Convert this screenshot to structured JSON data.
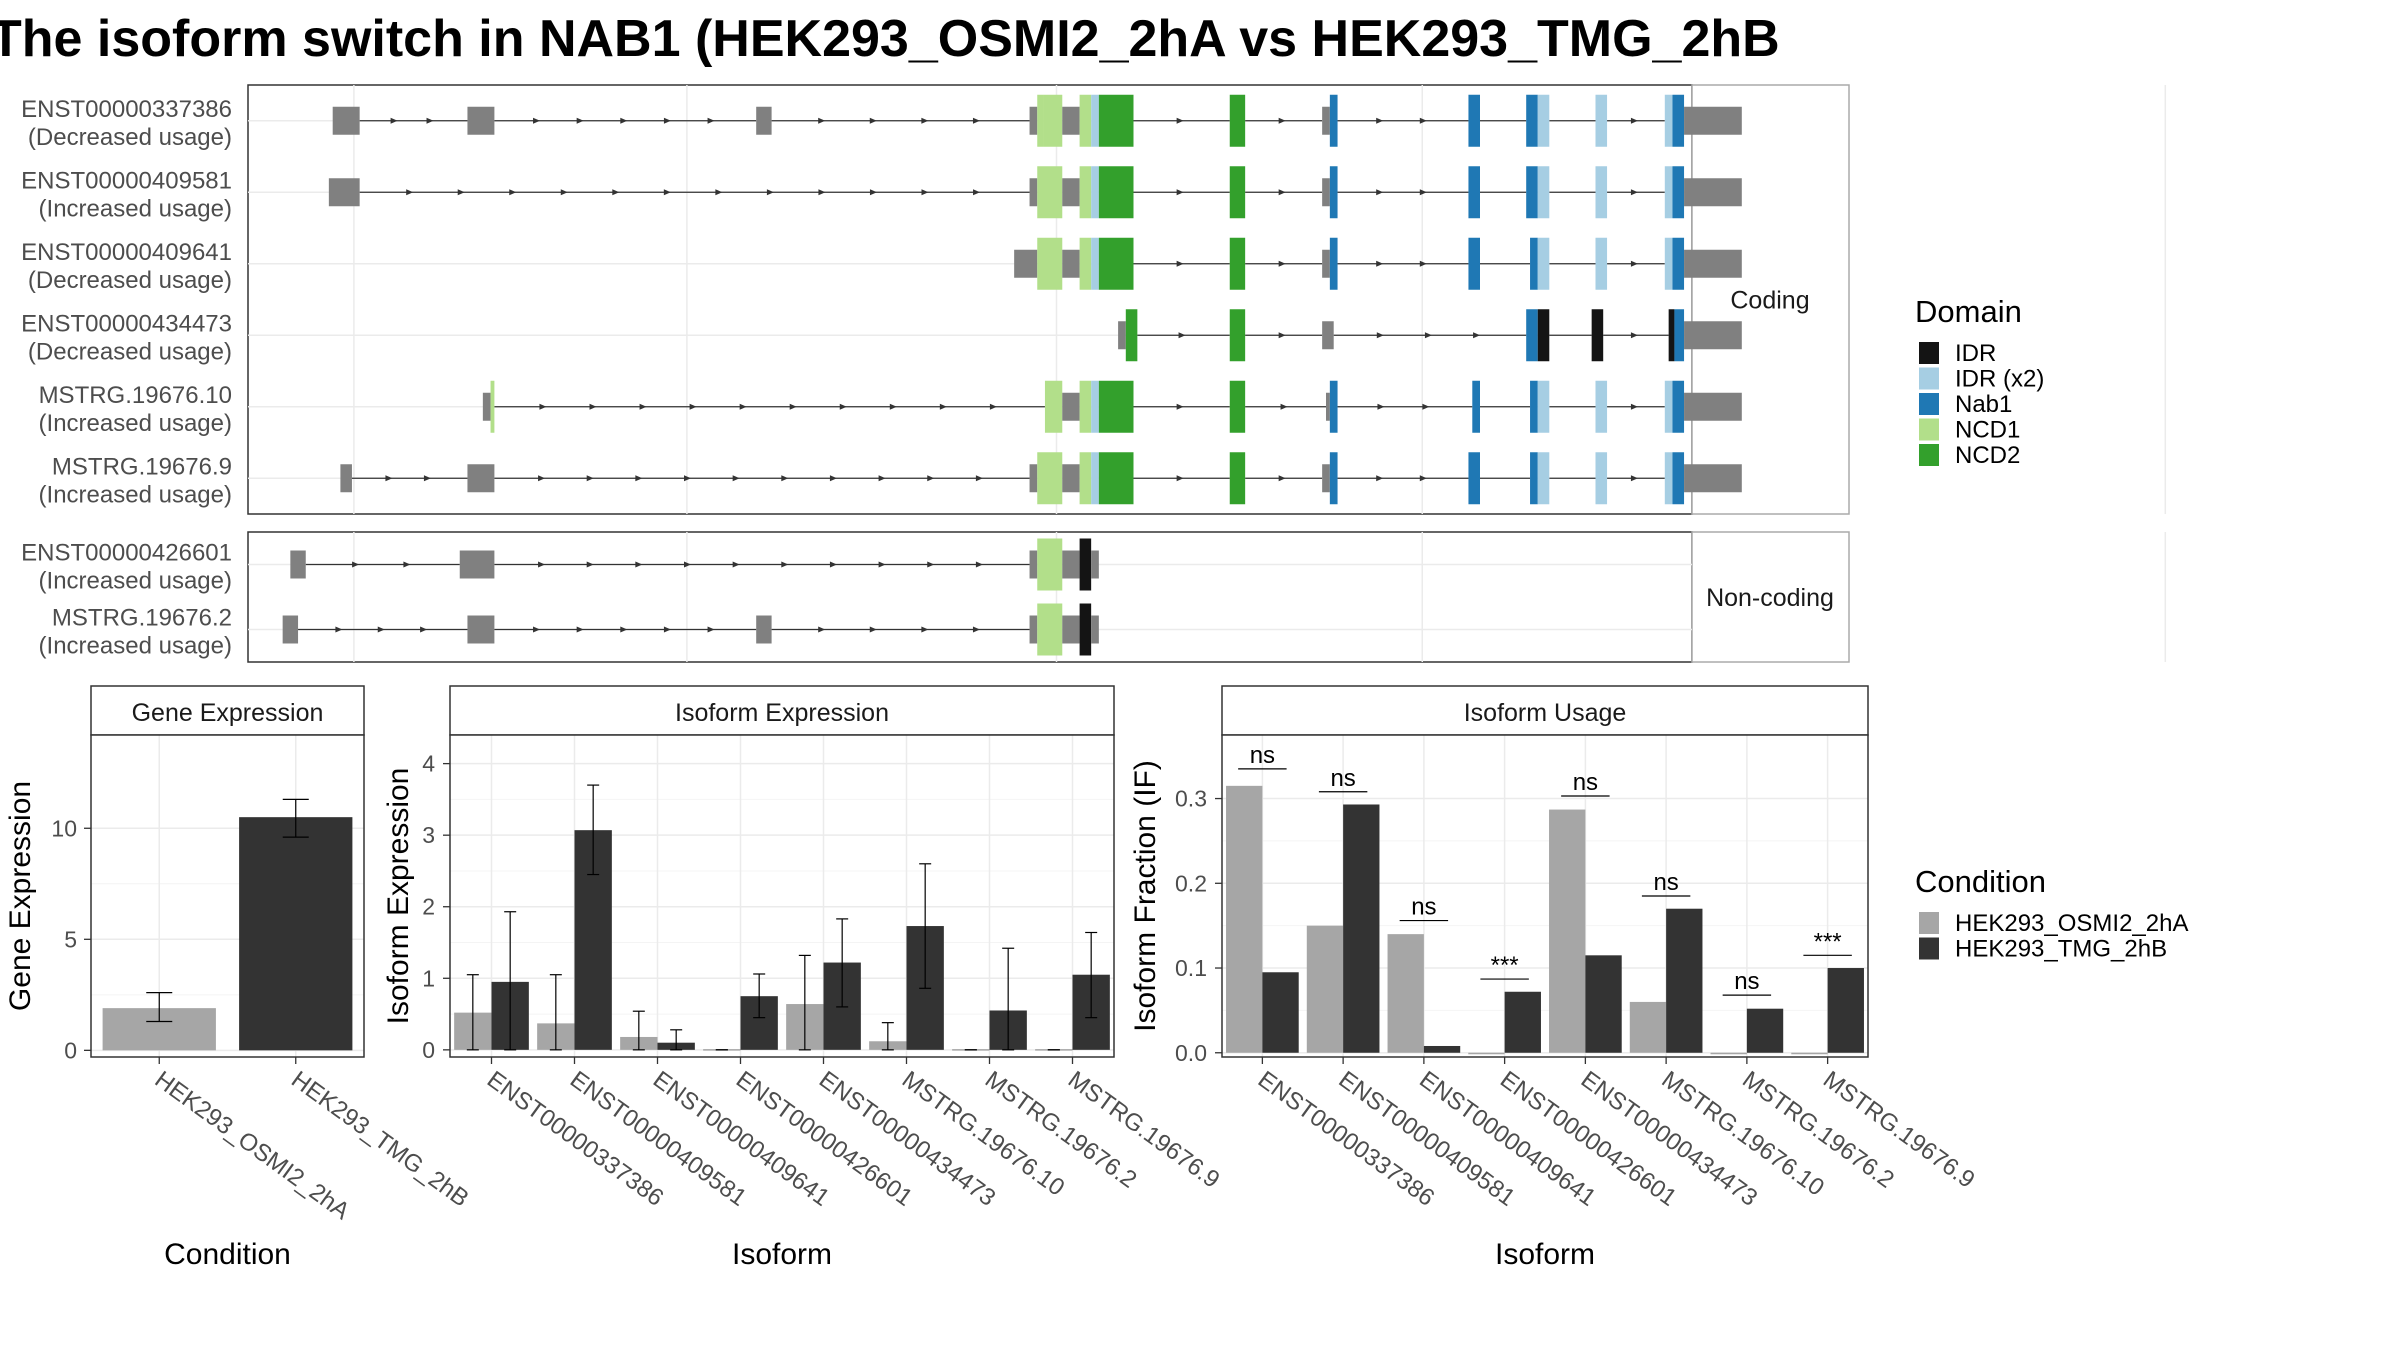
{
  "title": "The isoform switch in NAB1 (HEK293_OSMI2_2hA vs HEK293_TMG_2hB",
  "colors": {
    "intron": "#333333",
    "utr": "#808080",
    "domains": {
      "IDR": "#141414",
      "IDR (x2)": "#a6cee3",
      "Nab1": "#1f78b4",
      "NCD1": "#b2df8a",
      "NCD2": "#33a02c"
    },
    "conditions": {
      "HEK293_OSMI2_2hA": "#a6a6a6",
      "HEK293_TMG_2hB": "#333333"
    },
    "panel_border": "#333333",
    "strip_border": "#aaaaaa",
    "grid": "#ebebeb"
  },
  "structure": {
    "groups": [
      {
        "label": "Coding",
        "transcripts": [
          {
            "id": "ENST00000337386",
            "usage": "(Decreased usage)",
            "exons": [
              [
                62,
                69,
                "utr"
              ],
              [
                97,
                104,
                "utr"
              ],
              [
                172,
                176,
                "utr"
              ],
              [
                243,
                245,
                "utr"
              ],
              [
                245,
                246.5,
                "NCD1"
              ],
              [
                246.5,
                251.5,
                "NCD1"
              ],
              [
                251.5,
                256,
                "utr"
              ],
              [
                256,
                259,
                "NCD1"
              ],
              [
                259,
                261,
                "IDR (x2)"
              ],
              [
                261,
                270,
                "NCD2"
              ],
              [
                295,
                299,
                "NCD2"
              ],
              [
                319,
                321,
                "utr"
              ],
              [
                321,
                323,
                "Nab1"
              ],
              [
                357,
                360,
                "Nab1"
              ],
              [
                372,
                375,
                "Nab1"
              ],
              [
                375,
                378,
                "IDR (x2)"
              ],
              [
                390,
                393,
                "IDR (x2)"
              ],
              [
                408,
                410,
                "IDR (x2)"
              ],
              [
                410,
                413,
                "Nab1"
              ],
              [
                413,
                428,
                "utr"
              ]
            ]
          },
          {
            "id": "ENST00000409581",
            "usage": "(Increased usage)",
            "exons": [
              [
                61,
                69,
                "utr"
              ],
              [
                243,
                245,
                "utr"
              ],
              [
                245,
                251.5,
                "NCD1"
              ],
              [
                251.5,
                256,
                "utr"
              ],
              [
                256,
                259,
                "NCD1"
              ],
              [
                259,
                261,
                "IDR (x2)"
              ],
              [
                261,
                270,
                "NCD2"
              ],
              [
                295,
                299,
                "NCD2"
              ],
              [
                319,
                321,
                "utr"
              ],
              [
                321,
                323,
                "Nab1"
              ],
              [
                357,
                360,
                "Nab1"
              ],
              [
                372,
                375,
                "Nab1"
              ],
              [
                375,
                378,
                "IDR (x2)"
              ],
              [
                390,
                393,
                "IDR (x2)"
              ],
              [
                408,
                410,
                "IDR (x2)"
              ],
              [
                410,
                413,
                "Nab1"
              ],
              [
                413,
                428,
                "utr"
              ]
            ]
          },
          {
            "id": "ENST00000409641",
            "usage": "(Decreased usage)",
            "exons": [
              [
                239,
                245,
                "utr"
              ],
              [
                245,
                251.5,
                "NCD1"
              ],
              [
                251.5,
                256,
                "utr"
              ],
              [
                256,
                259,
                "NCD1"
              ],
              [
                259,
                261,
                "IDR (x2)"
              ],
              [
                261,
                270,
                "NCD2"
              ],
              [
                295,
                299,
                "NCD2"
              ],
              [
                319,
                321,
                "utr"
              ],
              [
                321,
                323,
                "Nab1"
              ],
              [
                357,
                360,
                "Nab1"
              ],
              [
                373,
                375,
                "Nab1"
              ],
              [
                375,
                378,
                "IDR (x2)"
              ],
              [
                390,
                393,
                "IDR (x2)"
              ],
              [
                408,
                410,
                "IDR (x2)"
              ],
              [
                410,
                413,
                "Nab1"
              ],
              [
                413,
                428,
                "utr"
              ]
            ]
          },
          {
            "id": "ENST00000434473",
            "usage": "(Decreased usage)",
            "exons": [
              [
                266,
                268,
                "utr"
              ],
              [
                268,
                271,
                "NCD2"
              ],
              [
                295,
                299,
                "NCD2"
              ],
              [
                319,
                322,
                "utr"
              ],
              [
                372,
                375,
                "Nab1"
              ],
              [
                375,
                378,
                "IDR"
              ],
              [
                389,
                392,
                "IDR"
              ],
              [
                409,
                410.5,
                "IDR"
              ],
              [
                410.5,
                413,
                "Nab1"
              ],
              [
                413,
                428,
                "utr"
              ]
            ]
          },
          {
            "id": "MSTRG.19676.10",
            "usage": "(Increased usage)",
            "exons": [
              [
                101,
                103,
                "utr"
              ],
              [
                103,
                104,
                "NCD1"
              ],
              [
                247,
                251.5,
                "NCD1"
              ],
              [
                251.5,
                256,
                "utr"
              ],
              [
                256,
                259,
                "NCD1"
              ],
              [
                259,
                261,
                "IDR (x2)"
              ],
              [
                261,
                270,
                "NCD2"
              ],
              [
                295,
                299,
                "NCD2"
              ],
              [
                320,
                321,
                "utr"
              ],
              [
                321,
                323,
                "Nab1"
              ],
              [
                358,
                360,
                "Nab1"
              ],
              [
                373,
                375,
                "Nab1"
              ],
              [
                375,
                378,
                "IDR (x2)"
              ],
              [
                390,
                393,
                "IDR (x2)"
              ],
              [
                408,
                410,
                "IDR (x2)"
              ],
              [
                410,
                413,
                "Nab1"
              ],
              [
                413,
                428,
                "utr"
              ]
            ]
          },
          {
            "id": "MSTRG.19676.9",
            "usage": "(Increased usage)",
            "exons": [
              [
                64,
                67,
                "utr"
              ],
              [
                97,
                104,
                "utr"
              ],
              [
                243,
                245,
                "utr"
              ],
              [
                245,
                251.5,
                "NCD1"
              ],
              [
                251.5,
                256,
                "utr"
              ],
              [
                256,
                259,
                "NCD1"
              ],
              [
                259,
                261,
                "IDR (x2)"
              ],
              [
                261,
                270,
                "NCD2"
              ],
              [
                295,
                299,
                "NCD2"
              ],
              [
                319,
                321,
                "utr"
              ],
              [
                321,
                323,
                "Nab1"
              ],
              [
                357,
                360,
                "Nab1"
              ],
              [
                373,
                375,
                "Nab1"
              ],
              [
                375,
                378,
                "IDR (x2)"
              ],
              [
                390,
                393,
                "IDR (x2)"
              ],
              [
                408,
                410,
                "IDR (x2)"
              ],
              [
                410,
                413,
                "Nab1"
              ],
              [
                413,
                428,
                "utr"
              ]
            ]
          }
        ]
      },
      {
        "label": "Non-coding",
        "transcripts": [
          {
            "id": "ENST00000426601",
            "usage": "(Increased usage)",
            "exons": [
              [
                51,
                55,
                "utr"
              ],
              [
                95,
                104,
                "utr"
              ],
              [
                243,
                245,
                "utr"
              ],
              [
                245,
                251.5,
                "NCD1"
              ],
              [
                251.5,
                256,
                "utr"
              ],
              [
                256,
                259,
                "IDR"
              ],
              [
                259,
                261,
                "utr"
              ]
            ]
          },
          {
            "id": "MSTRG.19676.2",
            "usage": "(Increased usage)",
            "exons": [
              [
                49,
                53,
                "utr"
              ],
              [
                97,
                104,
                "utr"
              ],
              [
                172,
                176,
                "utr"
              ],
              [
                243,
                245,
                "utr"
              ],
              [
                245,
                251.5,
                "NCD1"
              ],
              [
                251.5,
                256,
                "utr"
              ],
              [
                256,
                259,
                "IDR"
              ],
              [
                259,
                261,
                "utr"
              ]
            ]
          }
        ]
      }
    ],
    "legend_title": "Domain",
    "legend_items": [
      "IDR",
      "IDR (x2)",
      "Nab1",
      "NCD1",
      "NCD2"
    ]
  },
  "chart_data": [
    {
      "type": "bar",
      "title": "Gene Expression",
      "xlabel": "Condition",
      "ylabel": "Gene Expression",
      "categories": [
        "HEK293_OSMI2_2hA",
        "HEK293_TMG_2hB"
      ],
      "values": [
        1.9,
        10.5
      ],
      "errors": [
        [
          1.3,
          2.6
        ],
        [
          9.6,
          11.3
        ]
      ],
      "ylim": [
        -0.3,
        14.2
      ],
      "yticks": [
        0,
        5,
        10
      ]
    },
    {
      "type": "bar",
      "title": "Isoform Expression",
      "xlabel": "Isoform",
      "ylabel": "Isoform Expression",
      "categories": [
        "ENST00000337386",
        "ENST00000409581",
        "ENST00000409641",
        "ENST00000426601",
        "ENST00000434473",
        "MSTRG.19676.10",
        "MSTRG.19676.2",
        "MSTRG.19676.9"
      ],
      "series": [
        {
          "name": "HEK293_OSMI2_2hA",
          "values": [
            0.52,
            0.37,
            0.18,
            0.01,
            0.64,
            0.12,
            0.01,
            0.01
          ],
          "errors": [
            [
              0,
              1.05
            ],
            [
              0,
              1.05
            ],
            [
              0,
              0.54
            ],
            [
              0,
              0
            ],
            [
              0,
              1.32
            ],
            [
              0,
              0.38
            ],
            [
              0,
              0
            ],
            [
              0,
              0
            ]
          ]
        },
        {
          "name": "HEK293_TMG_2hB",
          "values": [
            0.95,
            3.07,
            0.1,
            0.75,
            1.22,
            1.73,
            0.55,
            1.05
          ],
          "errors": [
            [
              0,
              1.93
            ],
            [
              2.45,
              3.7
            ],
            [
              0,
              0.28
            ],
            [
              0.45,
              1.06
            ],
            [
              0.6,
              1.83
            ],
            [
              0.86,
              2.6
            ],
            [
              0,
              1.42
            ],
            [
              0.45,
              1.64
            ]
          ]
        }
      ],
      "ylim": [
        -0.1,
        4.4
      ],
      "yticks": [
        0,
        1,
        2,
        3,
        4
      ]
    },
    {
      "type": "bar",
      "title": "Isoform Usage",
      "xlabel": "Isoform",
      "ylabel": "Isoform Fraction (IF)",
      "categories": [
        "ENST00000337386",
        "ENST00000409581",
        "ENST00000409641",
        "ENST00000426601",
        "ENST00000434473",
        "MSTRG.19676.10",
        "MSTRG.19676.2",
        "MSTRG.19676.9"
      ],
      "series": [
        {
          "name": "HEK293_OSMI2_2hA",
          "values": [
            0.315,
            0.15,
            0.14,
            0.0,
            0.287,
            0.06,
            0.0,
            0.0
          ]
        },
        {
          "name": "HEK293_TMG_2hB",
          "values": [
            0.095,
            0.293,
            0.008,
            0.072,
            0.115,
            0.17,
            0.052,
            0.1
          ]
        }
      ],
      "significance": [
        "ns",
        "ns",
        "ns",
        "***",
        "ns",
        "ns",
        "ns",
        "***"
      ],
      "sig_levels": [
        0.335,
        0.308,
        0.156,
        0.087,
        0.303,
        0.185,
        0.068,
        0.115
      ],
      "ylim": [
        -0.005,
        0.375
      ],
      "yticks": [
        0.0,
        0.1,
        0.2,
        0.3
      ],
      "ytick_labels": [
        "0.0",
        "0.1",
        "0.2",
        "0.3"
      ]
    }
  ],
  "condition_legend": {
    "title": "Condition",
    "items": [
      "HEK293_OSMI2_2hA",
      "HEK293_TMG_2hB"
    ]
  }
}
